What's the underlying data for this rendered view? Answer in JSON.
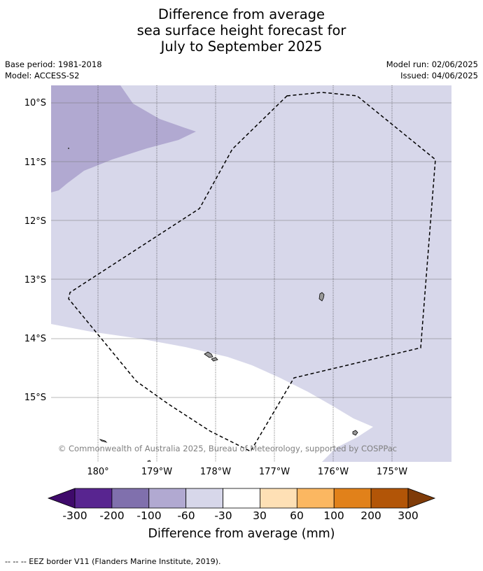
{
  "title": {
    "line1": "Difference from average",
    "line2": "sea surface height forecast for",
    "line3": "July to September 2025"
  },
  "meta": {
    "base_period": "Base period: 1981-2018",
    "model": "Model: ACCESS-S2",
    "model_run": "Model run: 02/06/2025",
    "issued": "Issued: 04/06/2025"
  },
  "map": {
    "lon_labels": [
      "180°",
      "179°W",
      "178°W",
      "177°W",
      "176°W",
      "175°W"
    ],
    "lat_labels": [
      "10°S",
      "11°S",
      "12°S",
      "13°S",
      "14°S",
      "15°S"
    ],
    "copyright": "© Commonwealth of Australia 2025, Bureau of Meteorology, supported by COSPPac",
    "colors": {
      "minus100_to_minus60": "#b1a9d1",
      "minus60_to_minus30": "#d7d7ea",
      "minus30_to_30": "#ffffff",
      "land": "#999999",
      "eez_border": "#000000"
    }
  },
  "colorbar": {
    "ticks": [
      "-300",
      "-200",
      "-100",
      "-60",
      "-30",
      "30",
      "60",
      "100",
      "200",
      "300"
    ],
    "colors": [
      "#3f0a6b",
      "#582590",
      "#8070ad",
      "#b1a9d1",
      "#d7d7ea",
      "#ffffff",
      "#fee0b5",
      "#fbb761",
      "#e1811a",
      "#b25507",
      "#7f3b08"
    ],
    "label": "Difference from average (mm)"
  },
  "footer": "--  --  -- EEZ border V11 (Flanders Marine Institute, 2019)."
}
